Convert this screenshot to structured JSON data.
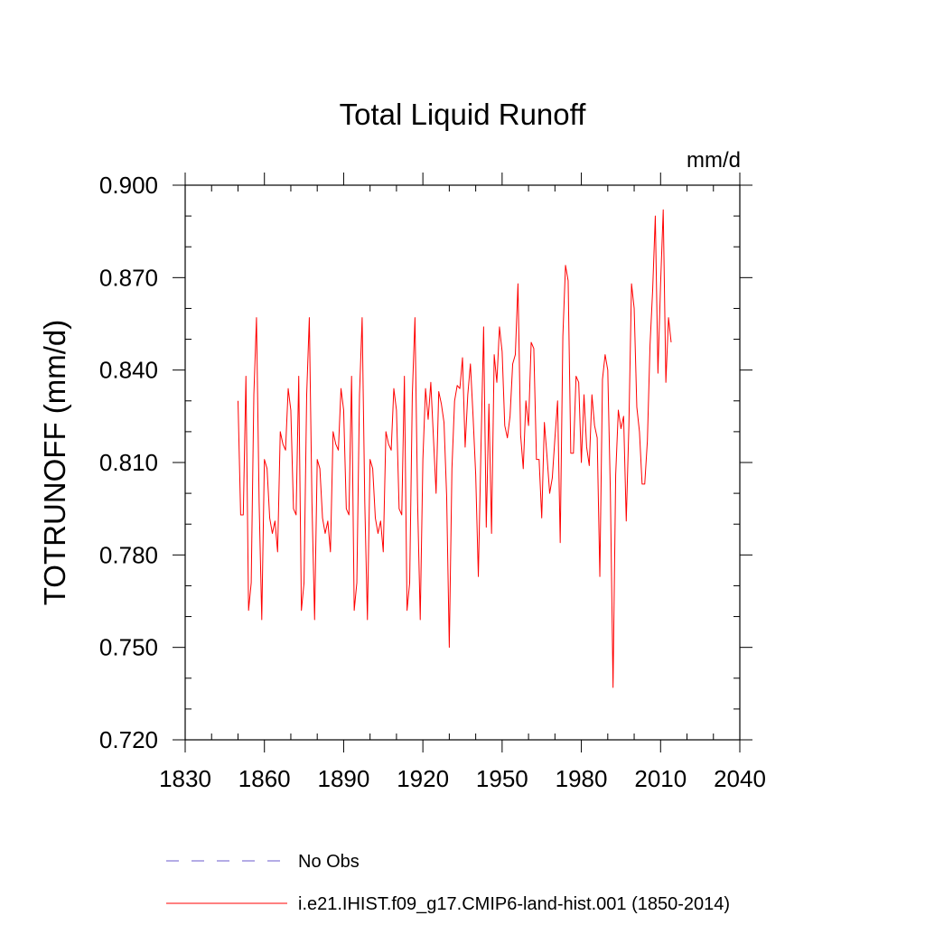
{
  "chart_data": {
    "type": "line",
    "title": "Total Liquid Runoff",
    "units_label": "mm/d",
    "ylabel": "TOTRUNOFF  (mm/d)",
    "xlabel": "",
    "xlim": [
      1830,
      2040
    ],
    "ylim": [
      0.72,
      0.9
    ],
    "x_ticks": [
      1830,
      1860,
      1890,
      1920,
      1950,
      1980,
      2010,
      2040
    ],
    "x_tick_labels": [
      "1830",
      "1860",
      "1890",
      "1920",
      "1950",
      "1980",
      "2010",
      "2040"
    ],
    "y_ticks": [
      0.72,
      0.75,
      0.78,
      0.81,
      0.84,
      0.87,
      0.9
    ],
    "y_tick_labels": [
      "0.720",
      "0.750",
      "0.780",
      "0.810",
      "0.840",
      "0.870",
      "0.900"
    ],
    "grid": false,
    "legend_placement": "bottom",
    "series": [
      {
        "name": "i.e21.IHIST.f09_g17.CMIP6-land-hist.001 (1850-2014)",
        "color": "#ff0000",
        "style": "solid",
        "x": [
          1850,
          1851,
          1852,
          1853,
          1854,
          1855,
          1856,
          1857,
          1858,
          1859,
          1860,
          1861,
          1862,
          1863,
          1864,
          1865,
          1866,
          1867,
          1868,
          1869,
          1870,
          1871,
          1872,
          1873,
          1874,
          1875,
          1876,
          1877,
          1878,
          1879,
          1880,
          1881,
          1882,
          1883,
          1884,
          1885,
          1886,
          1887,
          1888,
          1889,
          1890,
          1891,
          1892,
          1893,
          1894,
          1895,
          1896,
          1897,
          1898,
          1899,
          1900,
          1901,
          1902,
          1903,
          1904,
          1905,
          1906,
          1907,
          1908,
          1909,
          1910,
          1911,
          1912,
          1913,
          1914,
          1915,
          1916,
          1917,
          1918,
          1919,
          1920,
          1921,
          1922,
          1923,
          1924,
          1925,
          1926,
          1927,
          1928,
          1929,
          1930,
          1931,
          1932,
          1933,
          1934,
          1935,
          1936,
          1937,
          1938,
          1939,
          1940,
          1941,
          1942,
          1943,
          1944,
          1945,
          1946,
          1947,
          1948,
          1949,
          1950,
          1951,
          1952,
          1953,
          1954,
          1955,
          1956,
          1957,
          1958,
          1959,
          1960,
          1961,
          1962,
          1963,
          1964,
          1965,
          1966,
          1967,
          1968,
          1969,
          1970,
          1971,
          1972,
          1973,
          1974,
          1975,
          1976,
          1977,
          1978,
          1979,
          1980,
          1981,
          1982,
          1983,
          1984,
          1985,
          1986,
          1987,
          1988,
          1989,
          1990,
          1991,
          1992,
          1993,
          1994,
          1995,
          1996,
          1997,
          1998,
          1999,
          2000,
          2001,
          2002,
          2003,
          2004,
          2005,
          2006,
          2007,
          2008,
          2009,
          2010,
          2011,
          2012,
          2013,
          2014
        ],
        "y": [
          0.83,
          0.793,
          0.793,
          0.838,
          0.762,
          0.771,
          0.832,
          0.857,
          0.797,
          0.759,
          0.811,
          0.808,
          0.792,
          0.787,
          0.791,
          0.781,
          0.82,
          0.816,
          0.814,
          0.834,
          0.827,
          0.795,
          0.793,
          0.838,
          0.762,
          0.771,
          0.832,
          0.857,
          0.797,
          0.759,
          0.811,
          0.808,
          0.792,
          0.787,
          0.791,
          0.781,
          0.82,
          0.816,
          0.814,
          0.834,
          0.827,
          0.795,
          0.793,
          0.838,
          0.762,
          0.771,
          0.832,
          0.857,
          0.797,
          0.759,
          0.811,
          0.808,
          0.792,
          0.787,
          0.791,
          0.781,
          0.82,
          0.816,
          0.814,
          0.834,
          0.827,
          0.795,
          0.793,
          0.838,
          0.762,
          0.771,
          0.832,
          0.857,
          0.797,
          0.759,
          0.811,
          0.834,
          0.824,
          0.836,
          0.818,
          0.8,
          0.833,
          0.829,
          0.823,
          0.799,
          0.75,
          0.808,
          0.83,
          0.835,
          0.834,
          0.844,
          0.815,
          0.832,
          0.842,
          0.825,
          0.806,
          0.773,
          0.815,
          0.854,
          0.789,
          0.829,
          0.787,
          0.845,
          0.836,
          0.854,
          0.846,
          0.822,
          0.818,
          0.825,
          0.842,
          0.845,
          0.868,
          0.819,
          0.808,
          0.83,
          0.822,
          0.849,
          0.847,
          0.811,
          0.811,
          0.792,
          0.823,
          0.812,
          0.8,
          0.805,
          0.818,
          0.83,
          0.784,
          0.851,
          0.874,
          0.869,
          0.813,
          0.813,
          0.838,
          0.836,
          0.81,
          0.832,
          0.815,
          0.809,
          0.832,
          0.822,
          0.818,
          0.773,
          0.837,
          0.845,
          0.84,
          0.8,
          0.737,
          0.806,
          0.827,
          0.821,
          0.825,
          0.791,
          0.822,
          0.868,
          0.86,
          0.828,
          0.82,
          0.803,
          0.803,
          0.817,
          0.848,
          0.866,
          0.89,
          0.839,
          0.868,
          0.892,
          0.836,
          0.857,
          0.849
        ]
      },
      {
        "name": "No Obs",
        "color": "#6a5acd",
        "style": "dashed",
        "x": [],
        "y": []
      }
    ]
  }
}
